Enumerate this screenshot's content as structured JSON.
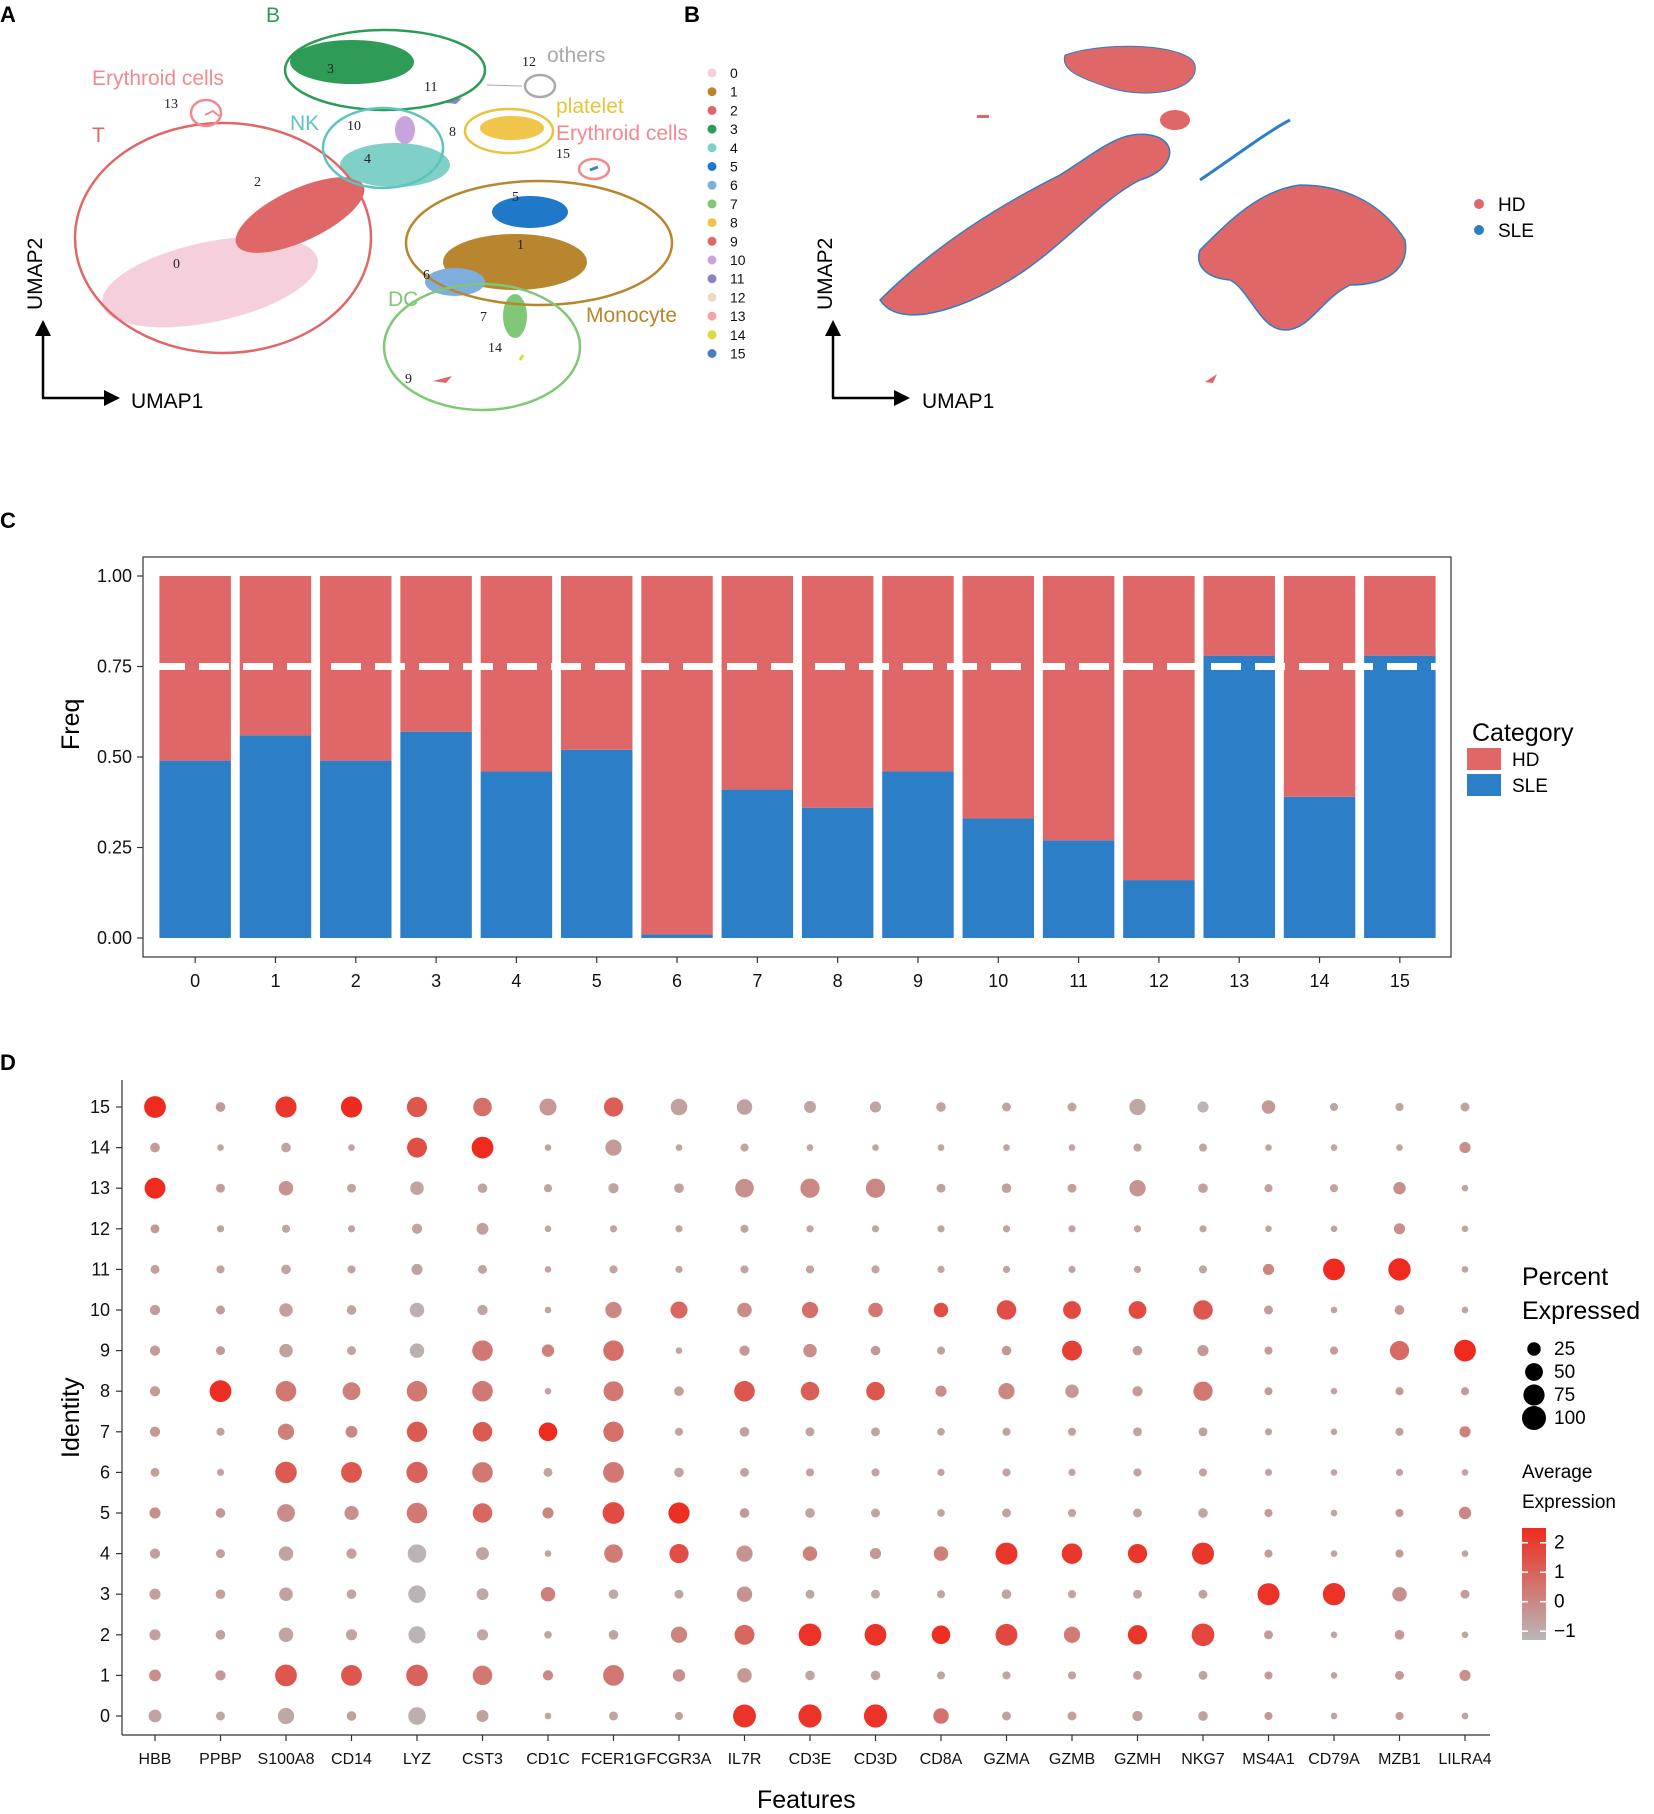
{
  "panels": {
    "a": "A",
    "b": "B",
    "c": "C",
    "d": "D"
  },
  "umap_a": {
    "xlabel": "UMAP1",
    "ylabel": "UMAP2",
    "groups": [
      {
        "key": "b",
        "label": "B",
        "color": "#2e9b57"
      },
      {
        "key": "others",
        "label": "others",
        "color": "#a9a9a9"
      },
      {
        "key": "ery1",
        "label": "Erythroid cells",
        "color": "#f08a90"
      },
      {
        "key": "t",
        "label": "T",
        "color": "#e06767"
      },
      {
        "key": "nk",
        "label": "NK",
        "color": "#5ec4bc"
      },
      {
        "key": "platelet",
        "label": "platelet",
        "color": "#e8c43b"
      },
      {
        "key": "ery2",
        "label": "Erythroid cells",
        "color": "#f08a90"
      },
      {
        "key": "dc",
        "label": "DC",
        "color": "#80c878"
      },
      {
        "key": "mono",
        "label": "Monocyte",
        "color": "#b8862f"
      }
    ],
    "clusters": [
      {
        "id": "0",
        "color": "#f5cfdc"
      },
      {
        "id": "1",
        "color": "#b8862f"
      },
      {
        "id": "2",
        "color": "#e06767"
      },
      {
        "id": "3",
        "color": "#2e9b57"
      },
      {
        "id": "4",
        "color": "#7fd0c6"
      },
      {
        "id": "5",
        "color": "#1f78c8"
      },
      {
        "id": "6",
        "color": "#7eaede"
      },
      {
        "id": "7",
        "color": "#80c878"
      },
      {
        "id": "8",
        "color": "#f0c64a"
      },
      {
        "id": "9",
        "color": "#e06767"
      },
      {
        "id": "10",
        "color": "#c9a4dc"
      },
      {
        "id": "11",
        "color": "#8f7fc6"
      },
      {
        "id": "12",
        "color": "#f2d7c8"
      },
      {
        "id": "13",
        "color": "#f3a5a5"
      },
      {
        "id": "14",
        "color": "#d8dc3c"
      },
      {
        "id": "15",
        "color": "#4c7fbf"
      }
    ]
  },
  "umap_b": {
    "xlabel": "UMAP1",
    "ylabel": "UMAP2",
    "legend": [
      {
        "label": "HD",
        "color": "#e06767"
      },
      {
        "label": "SLE",
        "color": "#2c7fc6"
      }
    ]
  },
  "chart_data": [
    {
      "type": "bar",
      "stacked": true,
      "title": "",
      "xlabel": "",
      "ylabel": "Freq",
      "ylim": [
        0,
        1
      ],
      "yticks": [
        "0.00",
        "0.25",
        "0.50",
        "0.75",
        "1.00"
      ],
      "reference_line": 0.75,
      "categories": [
        "0",
        "1",
        "2",
        "3",
        "4",
        "5",
        "6",
        "7",
        "8",
        "9",
        "10",
        "11",
        "12",
        "13",
        "14",
        "15"
      ],
      "series": [
        {
          "name": "SLE",
          "color": "#2c7fc6",
          "values": [
            0.49,
            0.56,
            0.49,
            0.57,
            0.46,
            0.52,
            0.01,
            0.41,
            0.36,
            0.46,
            0.33,
            0.27,
            0.16,
            0.78,
            0.39,
            0.78
          ]
        },
        {
          "name": "HD",
          "color": "#e06767",
          "values": [
            0.51,
            0.44,
            0.51,
            0.43,
            0.54,
            0.48,
            0.99,
            0.59,
            0.64,
            0.54,
            0.67,
            0.73,
            0.84,
            0.22,
            0.61,
            0.22
          ]
        }
      ],
      "legend_title": "Category",
      "legend": [
        {
          "label": "HD",
          "color": "#e06767"
        },
        {
          "label": "SLE",
          "color": "#2c7fc6"
        }
      ]
    },
    {
      "type": "scatter",
      "subtype": "dotplot",
      "xlabel": "Features",
      "ylabel": "Identity",
      "features": [
        "HBB",
        "PPBP",
        "S100A8",
        "CD14",
        "LYZ",
        "CST3",
        "CD1C",
        "FCER1G",
        "FCGR3A",
        "IL7R",
        "CD3E",
        "CD3D",
        "CD8A",
        "GZMA",
        "GZMB",
        "GZMH",
        "NKG7",
        "MS4A1",
        "CD79A",
        "MZB1",
        "LILRA4"
      ],
      "identities": [
        "0",
        "1",
        "2",
        "3",
        "4",
        "5",
        "6",
        "7",
        "8",
        "9",
        "10",
        "11",
        "12",
        "13",
        "14",
        "15"
      ],
      "pct_rows": [
        [
          22,
          8,
          40,
          10,
          48,
          18,
          3,
          8,
          6,
          90,
          92,
          92,
          35,
          8,
          8,
          12,
          10,
          6,
          3,
          6,
          3
        ],
        [
          18,
          12,
          80,
          72,
          78,
          62,
          12,
          72,
          20,
          30,
          10,
          10,
          6,
          6,
          6,
          8,
          8,
          6,
          3,
          8,
          15
        ],
        [
          15,
          10,
          30,
          15,
          45,
          15,
          5,
          10,
          40,
          65,
          88,
          80,
          55,
          80,
          40,
          60,
          88,
          8,
          3,
          10,
          3
        ],
        [
          15,
          10,
          25,
          10,
          48,
          18,
          30,
          10,
          8,
          35,
          8,
          8,
          6,
          10,
          6,
          8,
          8,
          82,
          85,
          30,
          8
        ],
        [
          12,
          8,
          30,
          12,
          55,
          22,
          3,
          55,
          60,
          40,
          30,
          15,
          30,
          82,
          70,
          60,
          82,
          6,
          3,
          6,
          3
        ],
        [
          15,
          10,
          50,
          28,
          70,
          62,
          15,
          80,
          75,
          10,
          10,
          8,
          5,
          8,
          6,
          8,
          10,
          6,
          3,
          6,
          20
        ],
        [
          8,
          4,
          78,
          72,
          75,
          70,
          8,
          72,
          10,
          8,
          6,
          6,
          4,
          6,
          4,
          6,
          6,
          4,
          3,
          4,
          3
        ],
        [
          12,
          6,
          40,
          18,
          68,
          62,
          55,
          68,
          6,
          10,
          8,
          8,
          5,
          6,
          6,
          8,
          8,
          4,
          3,
          6,
          15
        ],
        [
          12,
          80,
          70,
          50,
          70,
          70,
          3,
          65,
          10,
          70,
          55,
          55,
          15,
          40,
          25,
          12,
          60,
          6,
          3,
          6,
          6
        ],
        [
          12,
          8,
          25,
          8,
          30,
          70,
          20,
          70,
          3,
          12,
          25,
          10,
          6,
          10,
          65,
          10,
          15,
          6,
          6,
          60,
          80
        ],
        [
          12,
          8,
          25,
          10,
          30,
          12,
          3,
          40,
          45,
          30,
          40,
          30,
          30,
          62,
          50,
          50,
          62,
          8,
          3,
          10,
          3
        ],
        [
          8,
          6,
          10,
          6,
          15,
          8,
          3,
          6,
          4,
          6,
          6,
          6,
          4,
          4,
          4,
          4,
          6,
          15,
          80,
          85,
          3
        ],
        [
          8,
          4,
          6,
          4,
          12,
          18,
          3,
          4,
          4,
          6,
          4,
          4,
          4,
          4,
          4,
          4,
          4,
          3,
          3,
          15,
          3
        ],
        [
          72,
          8,
          30,
          8,
          25,
          10,
          6,
          12,
          10,
          55,
          60,
          60,
          8,
          10,
          8,
          40,
          10,
          6,
          6,
          20,
          3
        ],
        [
          10,
          3,
          10,
          3,
          65,
          80,
          3,
          40,
          3,
          6,
          3,
          3,
          3,
          3,
          3,
          6,
          6,
          3,
          3,
          3,
          15
        ],
        [
          80,
          10,
          75,
          75,
          68,
          55,
          45,
          60,
          42,
          35,
          18,
          15,
          10,
          8,
          8,
          40,
          15,
          25,
          6,
          6,
          8
        ]
      ],
      "expr_rows": [
        [
          -0.5,
          -0.5,
          -0.6,
          -0.4,
          -0.8,
          -0.4,
          -0.5,
          -0.5,
          -0.4,
          2.3,
          2.3,
          2.3,
          0.7,
          -0.4,
          -0.4,
          -0.4,
          -0.4,
          -0.2,
          -0.5,
          -0.3,
          -0.5
        ],
        [
          0,
          -0.2,
          1.4,
          1.4,
          1.1,
          0.6,
          0.2,
          0.6,
          0,
          -0.2,
          -0.5,
          -0.5,
          -0.5,
          -0.5,
          -0.5,
          -0.4,
          -0.5,
          -0.3,
          -0.5,
          -0.2,
          0
        ],
        [
          -0.4,
          -0.4,
          -0.5,
          -0.5,
          -0.9,
          -0.6,
          -0.5,
          -0.5,
          0.3,
          1.0,
          2.3,
          2.3,
          2.4,
          1.8,
          0.5,
          2.2,
          1.8,
          -0.3,
          -0.5,
          -0.2,
          -0.5
        ],
        [
          -0.4,
          -0.4,
          -0.4,
          -0.5,
          -0.9,
          -0.6,
          0.4,
          -0.6,
          -0.5,
          -0.1,
          -0.6,
          -0.6,
          -0.5,
          -0.5,
          -0.5,
          -0.5,
          -0.4,
          2.3,
          2.3,
          0,
          -0.3
        ],
        [
          -0.4,
          -0.4,
          -0.5,
          -0.4,
          -0.9,
          -0.5,
          -0.5,
          0.5,
          1.6,
          -0.1,
          0.4,
          -0.2,
          0.4,
          2.2,
          2.2,
          2.2,
          2.2,
          -0.3,
          -0.5,
          -0.2,
          -0.5
        ],
        [
          0,
          -0.2,
          0.1,
          0,
          0.6,
          1.0,
          0.3,
          1.7,
          2.4,
          -0.2,
          -0.5,
          -0.5,
          -0.5,
          -0.5,
          -0.5,
          -0.5,
          -0.5,
          -0.3,
          -0.5,
          -0.2,
          0.2
        ],
        [
          -0.4,
          -0.5,
          1.3,
          1.4,
          1.1,
          0.6,
          -0.5,
          0.6,
          -0.5,
          -0.5,
          -0.5,
          -0.5,
          -0.5,
          -0.5,
          -0.5,
          -0.5,
          -0.5,
          -0.5,
          -0.5,
          -0.5,
          -0.5
        ],
        [
          -0.2,
          -0.4,
          0.4,
          0.2,
          1.3,
          1.3,
          2.5,
          0.8,
          -0.5,
          -0.4,
          -0.5,
          -0.5,
          -0.5,
          -0.5,
          -0.5,
          -0.5,
          -0.4,
          -0.5,
          -0.5,
          -0.4,
          0.4
        ],
        [
          -0.3,
          2.4,
          0.6,
          0.4,
          0.6,
          0.6,
          -0.5,
          0.6,
          -0.4,
          1.4,
          1.2,
          1.4,
          0.1,
          0.2,
          -0.2,
          -0.3,
          0.6,
          -0.3,
          -0.5,
          -0.3,
          -0.3
        ],
        [
          -0.3,
          -0.2,
          -0.4,
          -0.5,
          -0.8,
          0.6,
          0.4,
          0.8,
          -0.5,
          -0.2,
          0,
          -0.2,
          -0.4,
          -0.2,
          2.0,
          -0.3,
          -0.2,
          -0.3,
          -0.3,
          0.9,
          2.5
        ],
        [
          -0.3,
          -0.3,
          -0.4,
          -0.5,
          -0.8,
          -0.5,
          -0.5,
          0.2,
          1.0,
          0.1,
          0.8,
          0.6,
          1.6,
          1.6,
          1.7,
          1.7,
          1.4,
          -0.3,
          -0.5,
          -0.2,
          -0.5
        ],
        [
          -0.4,
          -0.4,
          -0.5,
          -0.5,
          -0.5,
          -0.5,
          -0.5,
          -0.5,
          -0.5,
          -0.5,
          -0.5,
          -0.5,
          -0.5,
          -0.5,
          -0.5,
          -0.5,
          -0.5,
          0.3,
          2.5,
          2.5,
          -0.5
        ],
        [
          -0.2,
          -0.4,
          -0.5,
          -0.5,
          -0.5,
          -0.4,
          -0.5,
          -0.5,
          -0.5,
          -0.5,
          -0.5,
          -0.5,
          -0.5,
          -0.5,
          -0.5,
          -0.5,
          -0.5,
          -0.5,
          -0.5,
          0,
          -0.5
        ],
        [
          2.5,
          -0.3,
          -0.1,
          -0.5,
          -0.5,
          -0.5,
          -0.5,
          -0.5,
          -0.4,
          0,
          0.2,
          0.2,
          -0.4,
          -0.4,
          -0.4,
          -0.1,
          -0.4,
          -0.4,
          -0.5,
          0,
          -0.5
        ],
        [
          -0.3,
          -0.5,
          -0.5,
          -0.5,
          1.6,
          2.5,
          -0.5,
          -0.3,
          -0.5,
          -0.5,
          -0.5,
          -0.5,
          -0.5,
          -0.5,
          -0.5,
          -0.5,
          -0.5,
          -0.5,
          -0.5,
          -0.5,
          0
        ],
        [
          2.5,
          -0.2,
          2.2,
          2.6,
          1.4,
          0.8,
          -0.2,
          1.2,
          -0.4,
          -0.4,
          -0.5,
          -0.5,
          -0.5,
          -0.5,
          -0.5,
          -0.6,
          -0.9,
          -0.2,
          -0.5,
          -0.5,
          -0.4
        ]
      ],
      "size_legend_title": [
        "Percent",
        "Expressed"
      ],
      "size_legend": [
        "25",
        "50",
        "75",
        "100"
      ],
      "color_legend_title": [
        "Average",
        "Expression"
      ],
      "color_legend_ticks": [
        "2",
        "1",
        "0",
        "−1"
      ],
      "color_scale": {
        "low": "#b8b8b8",
        "high": "#ee2b1e"
      }
    }
  ]
}
